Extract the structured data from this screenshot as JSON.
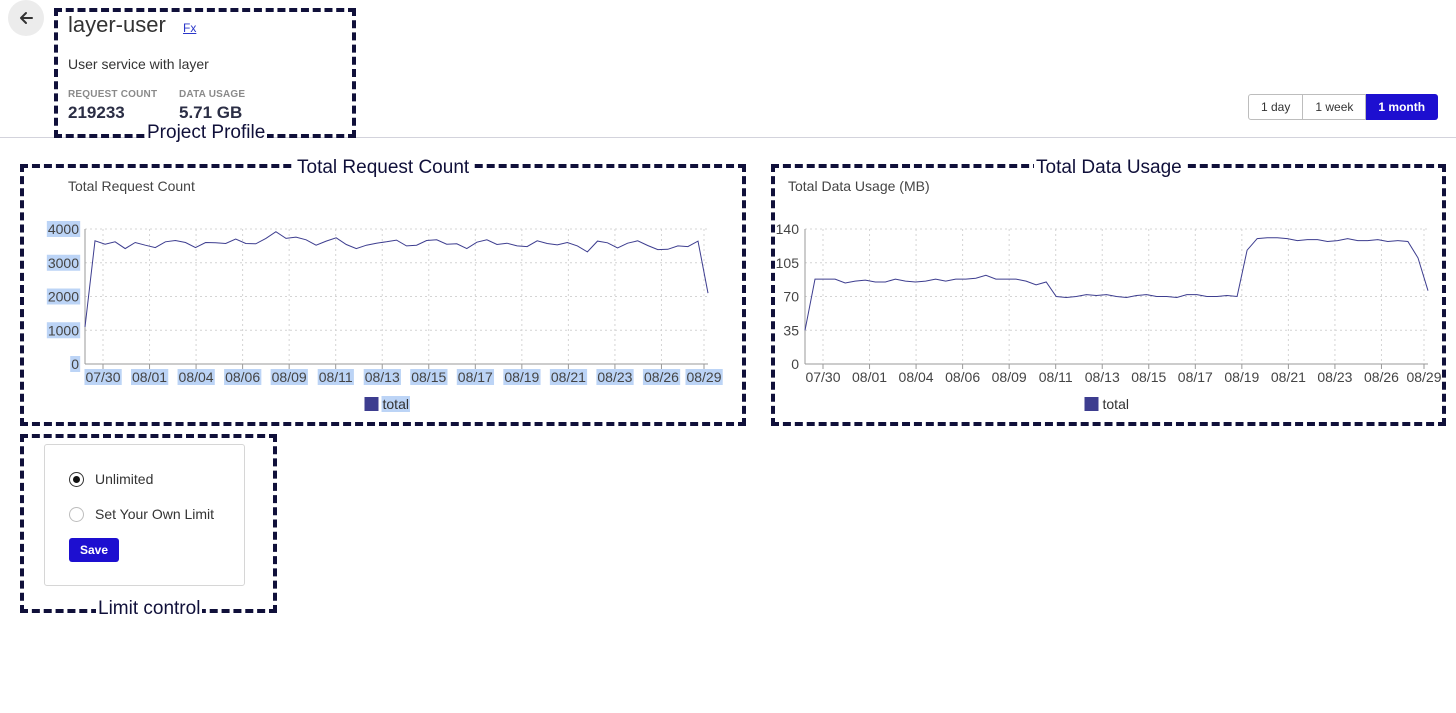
{
  "project": {
    "name": "layer-user",
    "fx_link": "Fx",
    "description": "User service with layer",
    "stats": [
      {
        "label": "REQUEST COUNT",
        "value": "219233"
      },
      {
        "label": "DATA USAGE",
        "value": "5.71 GB"
      }
    ]
  },
  "annotations": {
    "project_profile": "Project Profile",
    "total_request_count": "Total Request Count",
    "total_data_usage": "Total Data Usage",
    "limit_control": "Limit control"
  },
  "time_range": {
    "options": [
      "1 day",
      "1 week",
      "1 month"
    ],
    "selected": "1 month"
  },
  "colors": {
    "accent": "#1d0fd0",
    "series": "#3d3d8f",
    "annotation": "#10103a"
  },
  "chart_data": [
    {
      "type": "line",
      "title": "Total Request Count",
      "x_ticks": [
        "07/30",
        "08/01",
        "08/04",
        "08/06",
        "08/09",
        "08/11",
        "08/13",
        "08/15",
        "08/17",
        "08/19",
        "08/21",
        "08/23",
        "08/26",
        "08/29"
      ],
      "y_ticks": [
        0,
        1000,
        2000,
        3000,
        4000
      ],
      "ylim": [
        0,
        4000
      ],
      "grid": true,
      "legend": "bottom-center",
      "series": [
        {
          "name": "total",
          "values": [
            1100,
            3650,
            3550,
            3620,
            3420,
            3600,
            3520,
            3450,
            3620,
            3660,
            3600,
            3450,
            3600,
            3590,
            3570,
            3700,
            3570,
            3560,
            3720,
            3920,
            3720,
            3760,
            3680,
            3520,
            3640,
            3740,
            3540,
            3420,
            3520,
            3580,
            3620,
            3670,
            3500,
            3520,
            3660,
            3680,
            3550,
            3560,
            3420,
            3610,
            3680,
            3540,
            3580,
            3500,
            3480,
            3650,
            3570,
            3530,
            3600,
            3500,
            3320,
            3640,
            3590,
            3440,
            3580,
            3650,
            3510,
            3390,
            3400,
            3500,
            3480,
            3640,
            2100
          ]
        }
      ]
    },
    {
      "type": "line",
      "title": "Total Data Usage (MB)",
      "x_ticks": [
        "07/30",
        "08/01",
        "08/04",
        "08/06",
        "08/09",
        "08/11",
        "08/13",
        "08/15",
        "08/17",
        "08/19",
        "08/21",
        "08/23",
        "08/26",
        "08/29"
      ],
      "y_ticks": [
        0,
        35,
        70,
        105,
        140
      ],
      "ylim": [
        0,
        140
      ],
      "grid": true,
      "legend": "bottom-center",
      "series": [
        {
          "name": "total",
          "values": [
            35,
            88,
            88,
            88,
            84,
            86,
            87,
            85,
            85,
            88,
            86,
            85,
            86,
            88,
            86,
            88,
            88,
            89,
            92,
            88,
            88,
            88,
            86,
            82,
            85,
            70,
            69,
            70,
            72,
            71,
            72,
            70,
            69,
            71,
            72,
            70,
            70,
            69,
            72,
            72,
            70,
            70,
            71,
            70,
            118,
            130,
            131,
            131,
            130,
            128,
            129,
            129,
            127,
            128,
            130,
            128,
            128,
            129,
            127,
            128,
            127,
            110,
            76
          ]
        }
      ]
    }
  ],
  "limit": {
    "options": [
      {
        "label": "Unlimited",
        "checked": true
      },
      {
        "label": "Set Your Own Limit",
        "checked": false
      }
    ],
    "save_label": "Save"
  }
}
